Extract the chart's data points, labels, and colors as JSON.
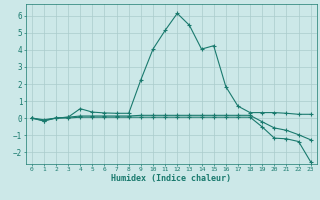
{
  "xlabel": "Humidex (Indice chaleur)",
  "background_color": "#cce8e8",
  "grid_color": "#aacccc",
  "line_color": "#1a7a6e",
  "xlim": [
    -0.5,
    23.5
  ],
  "ylim": [
    -2.7,
    6.7
  ],
  "xticks": [
    0,
    1,
    2,
    3,
    4,
    5,
    6,
    7,
    8,
    9,
    10,
    11,
    12,
    13,
    14,
    15,
    16,
    17,
    18,
    19,
    20,
    21,
    22,
    23
  ],
  "yticks": [
    -2,
    -1,
    0,
    1,
    2,
    3,
    4,
    5,
    6
  ],
  "line1_x": [
    0,
    1,
    2,
    3,
    4,
    5,
    6,
    7,
    8,
    9,
    10,
    11,
    12,
    13,
    14,
    15,
    16,
    17,
    18,
    19,
    20,
    21,
    22,
    23
  ],
  "line1_y": [
    0.0,
    -0.15,
    0.0,
    0.05,
    0.55,
    0.35,
    0.3,
    0.28,
    0.28,
    2.25,
    4.05,
    5.15,
    6.15,
    5.45,
    4.05,
    4.25,
    1.85,
    0.7,
    0.32,
    0.32,
    0.32,
    0.28,
    0.22,
    0.22
  ],
  "line2_x": [
    0,
    1,
    2,
    3,
    4,
    5,
    6,
    7,
    8,
    9,
    10,
    11,
    12,
    13,
    14,
    15,
    16,
    17,
    18,
    19,
    20,
    21,
    22,
    23
  ],
  "line2_y": [
    0.0,
    -0.18,
    0.0,
    0.0,
    0.05,
    0.05,
    0.05,
    0.05,
    0.05,
    0.05,
    0.05,
    0.05,
    0.05,
    0.05,
    0.05,
    0.05,
    0.05,
    0.05,
    0.05,
    -0.52,
    -1.18,
    -1.22,
    -1.38,
    -2.58
  ],
  "line3_x": [
    0,
    1,
    2,
    3,
    4,
    5,
    6,
    7,
    8,
    9,
    10,
    11,
    12,
    13,
    14,
    15,
    16,
    17,
    18,
    19,
    20,
    21,
    22,
    23
  ],
  "line3_y": [
    0.0,
    -0.1,
    0.0,
    0.05,
    0.12,
    0.12,
    0.12,
    0.12,
    0.12,
    0.16,
    0.16,
    0.16,
    0.16,
    0.16,
    0.16,
    0.16,
    0.16,
    0.16,
    0.16,
    -0.22,
    -0.58,
    -0.72,
    -0.98,
    -1.28
  ]
}
